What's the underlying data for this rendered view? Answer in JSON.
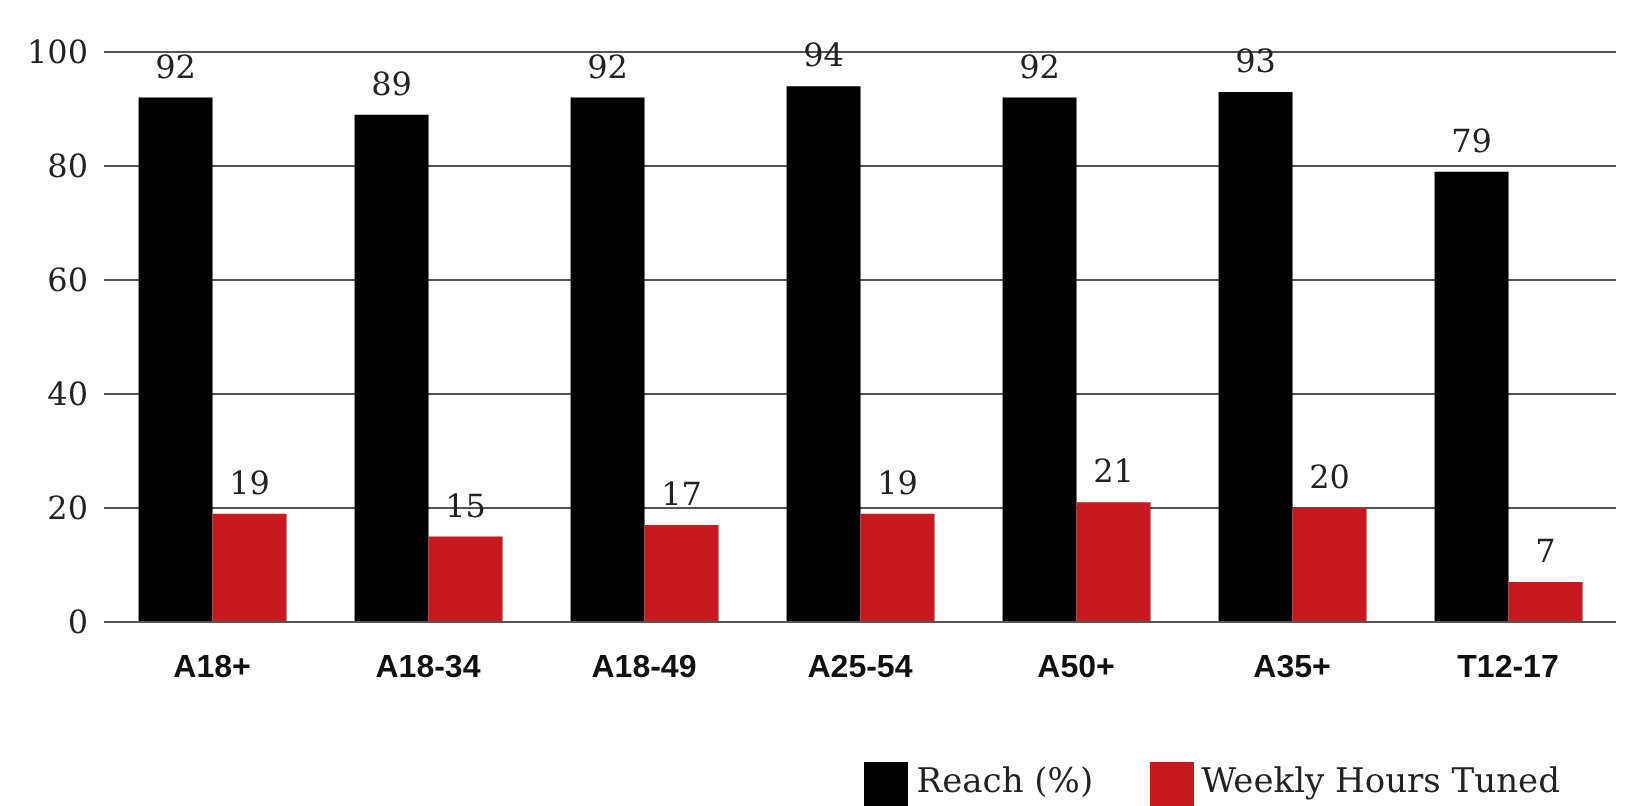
{
  "chart_data": {
    "type": "bar",
    "categories": [
      "A18+",
      "A18-34",
      "A18-49",
      "A25-54",
      "A50+",
      "A35+",
      "T12-17"
    ],
    "series": [
      {
        "name": "Reach (%)",
        "color": "#000000",
        "values": [
          92,
          89,
          92,
          94,
          92,
          93,
          79
        ]
      },
      {
        "name": "Weekly Hours Tuned",
        "color": "#c8191e",
        "values": [
          19,
          15,
          17,
          19,
          21,
          20,
          7
        ]
      }
    ],
    "ylim": [
      0,
      100
    ],
    "yticks": [
      0,
      20,
      40,
      60,
      80,
      100
    ],
    "grid": "y",
    "legend": "bottom right",
    "data_labels": true
  }
}
